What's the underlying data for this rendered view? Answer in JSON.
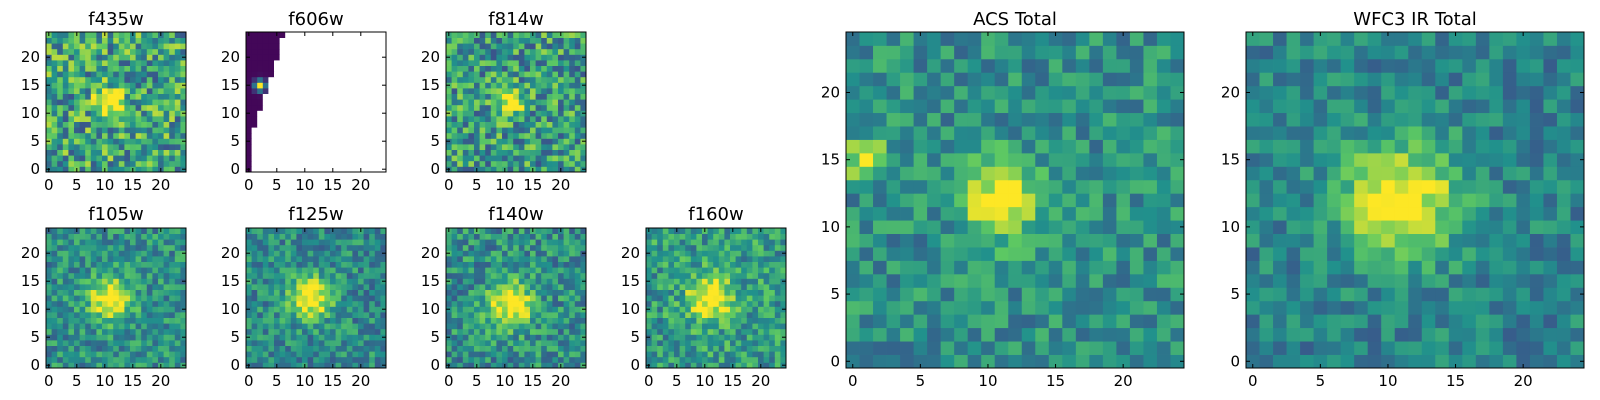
{
  "figure": {
    "colormap": [
      "#440154",
      "#3b528b",
      "#21918c",
      "#5ec962",
      "#fde725"
    ],
    "blank_color": "#ffffff"
  },
  "chart_data": [
    {
      "type": "heatmap",
      "title": "f435w",
      "grid": false,
      "xlim": [
        0,
        24
      ],
      "ylim": [
        0,
        24
      ],
      "xticks": [
        "0",
        "5",
        "10",
        "15",
        "20"
      ],
      "yticks": [
        "0",
        "5",
        "10",
        "15",
        "20"
      ],
      "description": "pixel-level noise field with a compact bright source near (11, 12)",
      "source": {
        "x": 11,
        "y": 12,
        "radius": 1.8,
        "peak": 0.55
      },
      "noise": 0.32,
      "background": 0.58,
      "seed": 11
    },
    {
      "type": "heatmap",
      "title": "f606w",
      "grid": false,
      "xlim": [
        0,
        24
      ],
      "ylim": [
        0,
        24
      ],
      "xticks": [
        "0",
        "5",
        "10",
        "15",
        "20"
      ],
      "yticks": [
        "0",
        "5",
        "10",
        "15",
        "20"
      ],
      "description": "mostly empty (no coverage); dark strip along the left edge with a small bright spot near (2, 15)",
      "source": {
        "x": 2,
        "y": 15,
        "radius": 0.7,
        "peak": 1.0
      },
      "noise": 0.05,
      "background": 0.0,
      "seed": 23,
      "coverage": "left-wedge"
    },
    {
      "type": "heatmap",
      "title": "f814w",
      "grid": false,
      "xlim": [
        0,
        24
      ],
      "ylim": [
        0,
        24
      ],
      "xticks": [
        "0",
        "5",
        "10",
        "15",
        "20"
      ],
      "yticks": [
        "0",
        "5",
        "10",
        "15",
        "20"
      ],
      "source": {
        "x": 11,
        "y": 12,
        "radius": 1.6,
        "peak": 0.55
      },
      "noise": 0.3,
      "background": 0.55,
      "seed": 37
    },
    {
      "type": "heatmap",
      "title": "f105w",
      "grid": false,
      "xlim": [
        0,
        24
      ],
      "ylim": [
        0,
        24
      ],
      "xticks": [
        "0",
        "5",
        "10",
        "15",
        "20"
      ],
      "yticks": [
        "0",
        "5",
        "10",
        "15",
        "20"
      ],
      "source": {
        "x": 11,
        "y": 12,
        "radius": 2.6,
        "peak": 0.6
      },
      "noise": 0.2,
      "background": 0.5,
      "seed": 41
    },
    {
      "type": "heatmap",
      "title": "f125w",
      "grid": false,
      "xlim": [
        0,
        24
      ],
      "ylim": [
        0,
        24
      ],
      "xticks": [
        "0",
        "5",
        "10",
        "15",
        "20"
      ],
      "yticks": [
        "0",
        "5",
        "10",
        "15",
        "20"
      ],
      "source": {
        "x": 11,
        "y": 12,
        "radius": 2.6,
        "peak": 0.62
      },
      "noise": 0.2,
      "background": 0.48,
      "seed": 53
    },
    {
      "type": "heatmap",
      "title": "f140w",
      "grid": false,
      "xlim": [
        0,
        24
      ],
      "ylim": [
        0,
        24
      ],
      "xticks": [
        "0",
        "5",
        "10",
        "15",
        "20"
      ],
      "yticks": [
        "0",
        "5",
        "10",
        "15",
        "20"
      ],
      "source": {
        "x": 11,
        "y": 11,
        "radius": 2.8,
        "peak": 0.6
      },
      "noise": 0.22,
      "background": 0.5,
      "seed": 67
    },
    {
      "type": "heatmap",
      "title": "f160w",
      "grid": false,
      "xlim": [
        0,
        24
      ],
      "ylim": [
        0,
        24
      ],
      "xticks": [
        "0",
        "5",
        "10",
        "15",
        "20"
      ],
      "yticks": [
        "0",
        "5",
        "10",
        "15",
        "20"
      ],
      "source": {
        "x": 11,
        "y": 12,
        "radius": 2.8,
        "peak": 0.55
      },
      "noise": 0.22,
      "background": 0.55,
      "seed": 79
    },
    {
      "type": "heatmap",
      "title": "ACS Total",
      "grid": false,
      "xlim": [
        0,
        24
      ],
      "ylim": [
        0,
        24
      ],
      "xticks": [
        "0",
        "5",
        "10",
        "15",
        "20"
      ],
      "yticks": [
        "0",
        "5",
        "10",
        "15",
        "20"
      ],
      "source": {
        "x": 11,
        "y": 12,
        "radius": 1.9,
        "peak": 0.6
      },
      "extra_source": {
        "x": 1,
        "y": 15,
        "radius": 1.0,
        "peak": 0.55
      },
      "noise": 0.18,
      "background": 0.5,
      "seed": 97
    },
    {
      "type": "heatmap",
      "title": "WFC3 IR Total",
      "grid": false,
      "xlim": [
        0,
        24
      ],
      "ylim": [
        0,
        24
      ],
      "xticks": [
        "0",
        "5",
        "10",
        "15",
        "20"
      ],
      "yticks": [
        "0",
        "5",
        "10",
        "15",
        "20"
      ],
      "source": {
        "x": 11,
        "y": 12,
        "radius": 3.0,
        "peak": 0.62
      },
      "noise": 0.16,
      "background": 0.45,
      "seed": 131
    }
  ]
}
